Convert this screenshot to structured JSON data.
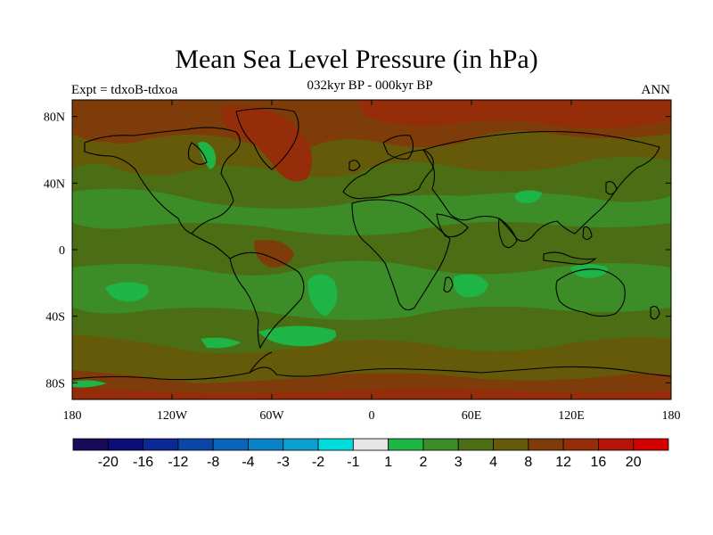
{
  "title": "Mean Sea Level Pressure (in hPa)",
  "subtitle": "032kyr BP - 000kyr BP",
  "left_label": "Expt = tdxoB-tdxoa",
  "right_label": "ANN",
  "axes": {
    "lon_ticks": [
      {
        "value": -180,
        "label": "180"
      },
      {
        "value": -120,
        "label": "120W"
      },
      {
        "value": -60,
        "label": "60W"
      },
      {
        "value": 0,
        "label": "0"
      },
      {
        "value": 60,
        "label": "60E"
      },
      {
        "value": 120,
        "label": "120E"
      },
      {
        "value": 180,
        "label": "180"
      }
    ],
    "lat_ticks": [
      {
        "value": 80,
        "label": "80N"
      },
      {
        "value": 40,
        "label": "40N"
      },
      {
        "value": 0,
        "label": "0"
      },
      {
        "value": -40,
        "label": "40S"
      },
      {
        "value": -80,
        "label": "80S"
      }
    ],
    "lon_range": [
      -180,
      180
    ],
    "lat_range": [
      -90,
      90
    ]
  },
  "colorbar": {
    "colors": [
      "#1a0a5a",
      "#0d0d78",
      "#0a2896",
      "#0a46a5",
      "#0a64b9",
      "#0a82c8",
      "#0aa0d2",
      "#00dcdc",
      "#e6e6e6",
      "#1eb446",
      "#3c8c28",
      "#4b6e14",
      "#645a0a",
      "#7d3c0a",
      "#962d0a",
      "#b4140a",
      "#d20000"
    ],
    "labels": [
      "-20",
      "-16",
      "-12",
      "-8",
      "-4",
      "-3",
      "-2",
      "-1",
      "1",
      "2",
      "3",
      "4",
      "8",
      "12",
      "16",
      "20"
    ]
  },
  "map_colors": {
    "base": "#4b6e14",
    "mid": "#3c8c28",
    "high": "#645a0a",
    "higher": "#7d3c0a",
    "highest": "#962d0a",
    "peak": "#b4140a",
    "low": "#1eb446",
    "coast": "#000000"
  }
}
